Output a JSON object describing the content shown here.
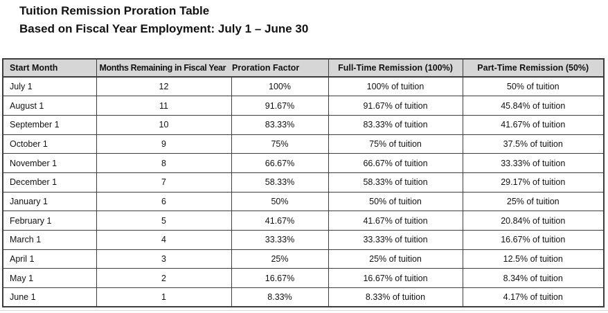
{
  "title": {
    "line1": "Tuition Remission Proration Table",
    "line2": "Based on Fiscal Year Employment: July 1 – June 30"
  },
  "table": {
    "columns": [
      {
        "label": "Start Month"
      },
      {
        "label": "Months Remaining in Fiscal Year"
      },
      {
        "label": "Proration Factor"
      },
      {
        "label": "Full-Time Remission (100%)"
      },
      {
        "label": "Part-Time Remission (50%)"
      }
    ],
    "rows": [
      [
        "July 1",
        "12",
        "100%",
        "100% of tuition",
        "50% of tuition"
      ],
      [
        "August 1",
        "11",
        "91.67%",
        "91.67% of tuition",
        "45.84% of tuition"
      ],
      [
        "September 1",
        "10",
        "83.33%",
        "83.33% of tuition",
        "41.67% of tuition"
      ],
      [
        "October 1",
        "9",
        "75%",
        "75% of tuition",
        "37.5% of tuition"
      ],
      [
        "November 1",
        "8",
        "66.67%",
        "66.67% of tuition",
        "33.33% of tuition"
      ],
      [
        "December 1",
        "7",
        "58.33%",
        "58.33% of tuition",
        "29.17% of tuition"
      ],
      [
        "January 1",
        "6",
        "50%",
        "50% of tuition",
        "25% of tuition"
      ],
      [
        "February 1",
        "5",
        "41.67%",
        "41.67% of tuition",
        "20.84% of tuition"
      ],
      [
        "March 1",
        "4",
        "33.33%",
        "33.33% of tuition",
        "16.67% of tuition"
      ],
      [
        "April 1",
        "3",
        "25%",
        "25% of tuition",
        "12.5% of tuition"
      ],
      [
        "May 1",
        "2",
        "16.67%",
        "16.67% of tuition",
        "8.34% of tuition"
      ],
      [
        "June 1",
        "1",
        "8.33%",
        "8.33% of tuition",
        "4.17% of tuition"
      ]
    ]
  },
  "colors": {
    "header_bg": "#d6d6d6",
    "border": "#3c3c3c",
    "text": "#111111",
    "bottom_rule": "#d8d8d8"
  }
}
